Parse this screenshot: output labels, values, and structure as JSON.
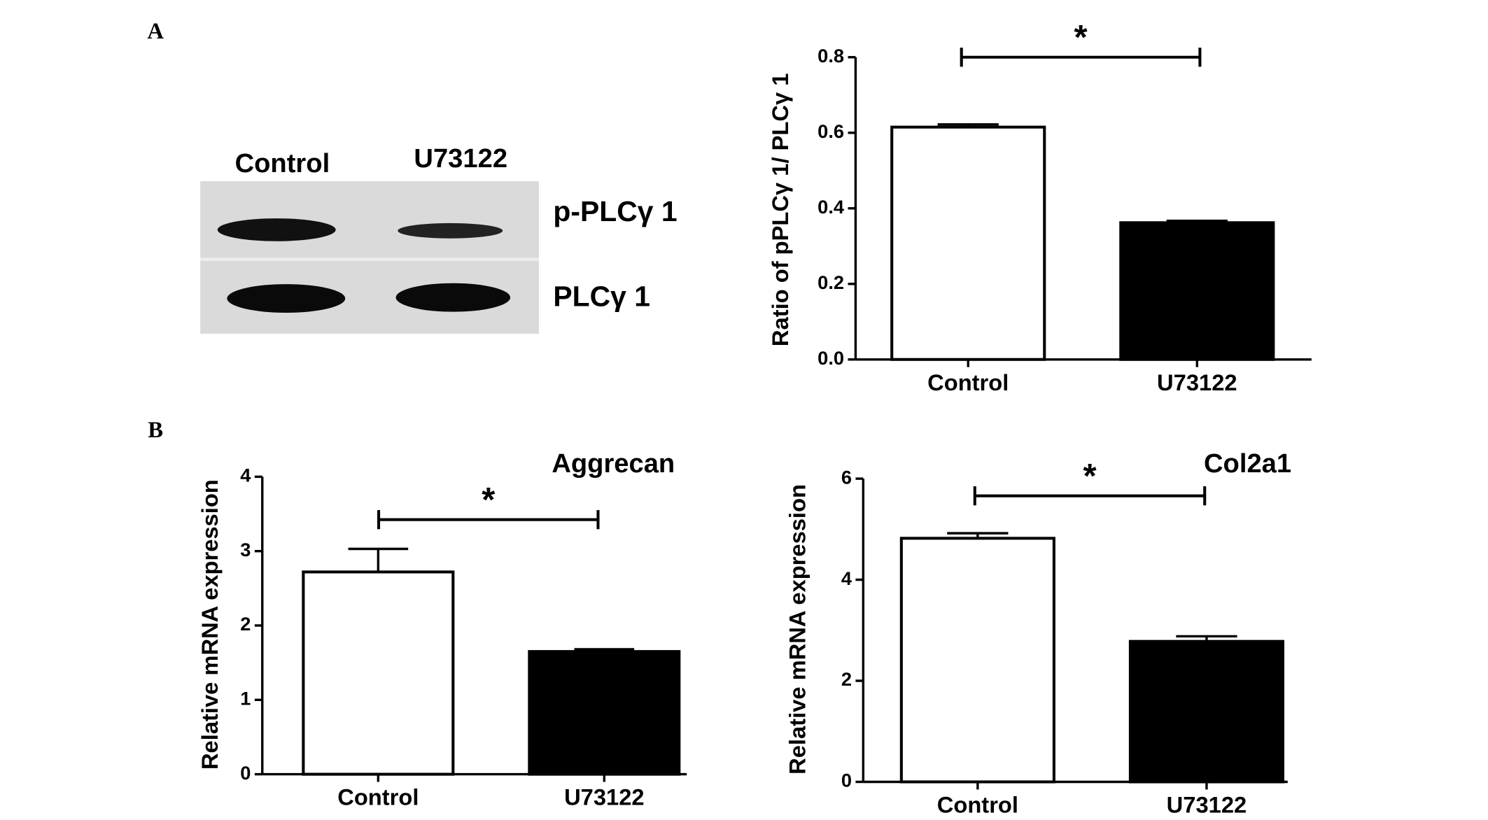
{
  "panel_labels": [
    "A",
    "B"
  ],
  "blot": {
    "lanes": [
      "Control",
      "U73122"
    ],
    "bands": [
      "p-PLCγ 1",
      "PLCγ 1"
    ]
  },
  "chart_data": [
    {
      "type": "bar",
      "y_label": "Ratio of pPLCγ 1/ PLCγ 1",
      "categories": [
        "Control",
        "U73122"
      ],
      "values": [
        0.615,
        0.362
      ],
      "errors": [
        0.007,
        0.005
      ],
      "colors": [
        "#ffffff",
        "#000000"
      ],
      "ylim": [
        0,
        0.8
      ],
      "yticks": [
        {
          "value": 0,
          "label": "0.0"
        },
        0.2,
        0.4,
        0.6,
        0.8
      ],
      "significance": "*"
    },
    {
      "type": "bar",
      "title": "Aggrecan",
      "y_label": "Relative mRNA expression",
      "categories": [
        "Control",
        "U73122"
      ],
      "values": [
        2.72,
        1.65
      ],
      "errors": [
        0.31,
        0.03
      ],
      "colors": [
        "#ffffff",
        "#000000"
      ],
      "ylim": [
        0,
        4
      ],
      "yticks": [
        0,
        1,
        2,
        3,
        4
      ],
      "significance": "*"
    },
    {
      "type": "bar",
      "title": "Col2a1",
      "y_label": "Relative mRNA expression",
      "categories": [
        "Control",
        "U73122"
      ],
      "values": [
        4.82,
        2.78
      ],
      "errors": [
        0.1,
        0.1
      ],
      "colors": [
        "#ffffff",
        "#000000"
      ],
      "ylim": [
        0,
        6
      ],
      "yticks": [
        0,
        2,
        4,
        6
      ],
      "significance": "*"
    }
  ]
}
